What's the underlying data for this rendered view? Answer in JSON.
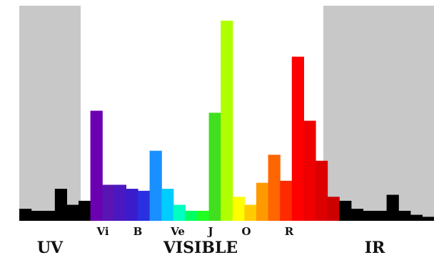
{
  "chart_data": {
    "type": "bar",
    "title": "",
    "xlabel": "",
    "ylabel": "",
    "ylim": [
      0,
      100
    ],
    "grid": false,
    "legend": "none",
    "regions": [
      {
        "key": "uv",
        "label": "UV",
        "color": "#c8c8c8"
      },
      {
        "key": "visible",
        "label": "VISIBLE",
        "color": "#ffffff"
      },
      {
        "key": "ir",
        "label": "IR",
        "color": "#c8c8c8"
      }
    ],
    "band_labels": [
      "Vi",
      "B",
      "Ve",
      "J",
      "O",
      "R"
    ],
    "bars": [
      {
        "value": 6,
        "color": "#000000"
      },
      {
        "value": 5,
        "color": "#000000"
      },
      {
        "value": 5,
        "color": "#000000"
      },
      {
        "value": 16,
        "color": "#000000"
      },
      {
        "value": 8,
        "color": "#000000"
      },
      {
        "value": 10,
        "color": "#000000"
      },
      {
        "value": 55,
        "color": "#6b00b0"
      },
      {
        "value": 18,
        "color": "#5a14b4"
      },
      {
        "value": 18,
        "color": "#4a18c0"
      },
      {
        "value": 16,
        "color": "#3a1ccc"
      },
      {
        "value": 15,
        "color": "#2a30e0"
      },
      {
        "value": 35,
        "color": "#1890ff"
      },
      {
        "value": 16,
        "color": "#00ccff"
      },
      {
        "value": 8,
        "color": "#00ffc0"
      },
      {
        "value": 5,
        "color": "#00ff60"
      },
      {
        "value": 5,
        "color": "#20ff20"
      },
      {
        "value": 54,
        "color": "#40e020"
      },
      {
        "value": 100,
        "color": "#b0ff00"
      },
      {
        "value": 12,
        "color": "#ffff00"
      },
      {
        "value": 8,
        "color": "#ffcc00"
      },
      {
        "value": 19,
        "color": "#ff9900"
      },
      {
        "value": 33,
        "color": "#ff6600"
      },
      {
        "value": 20,
        "color": "#ff2a00"
      },
      {
        "value": 82,
        "color": "#ff0000"
      },
      {
        "value": 50,
        "color": "#ee0000"
      },
      {
        "value": 30,
        "color": "#dd0000"
      },
      {
        "value": 12,
        "color": "#cc0000"
      },
      {
        "value": 10,
        "color": "#000000"
      },
      {
        "value": 6,
        "color": "#000000"
      },
      {
        "value": 5,
        "color": "#000000"
      },
      {
        "value": 5,
        "color": "#000000"
      },
      {
        "value": 13,
        "color": "#000000"
      },
      {
        "value": 5,
        "color": "#000000"
      },
      {
        "value": 3,
        "color": "#000000"
      },
      {
        "value": 2,
        "color": "#000000"
      }
    ]
  }
}
